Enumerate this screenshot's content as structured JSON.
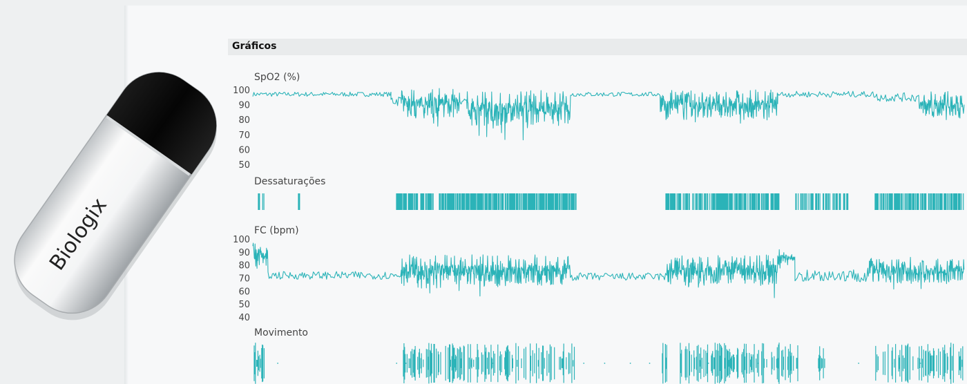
{
  "header": {
    "title": "Gráficos"
  },
  "device": {
    "brand": "Biologix"
  },
  "chart_data": [
    {
      "type": "line",
      "title": "SpO2 (%)",
      "yticks": [
        100,
        90,
        80,
        70,
        60,
        50
      ],
      "ylim": [
        50,
        100
      ],
      "color": "#2bb3b8",
      "segments": [
        {
          "x0": 0,
          "x1": 200,
          "base": 97,
          "amp": 1.5
        },
        {
          "x0": 200,
          "x1": 215,
          "base": 93,
          "amp": 4
        },
        {
          "x0": 215,
          "x1": 300,
          "base": 91,
          "amp": 10
        },
        {
          "x0": 300,
          "x1": 310,
          "base": 93,
          "amp": 3
        },
        {
          "x0": 310,
          "x1": 460,
          "base": 88,
          "amp": 12
        },
        {
          "x0": 460,
          "x1": 590,
          "base": 97,
          "amp": 1.5
        },
        {
          "x0": 590,
          "x1": 760,
          "base": 90,
          "amp": 10
        },
        {
          "x0": 760,
          "x1": 900,
          "base": 97,
          "amp": 2
        },
        {
          "x0": 900,
          "x1": 965,
          "base": 95,
          "amp": 3
        },
        {
          "x0": 965,
          "x1": 1030,
          "base": 90,
          "amp": 9
        }
      ]
    },
    {
      "type": "events",
      "title": "Dessaturações",
      "color": "#2bb3b8",
      "clusters": [
        {
          "x0": 8,
          "x1": 20,
          "density": 0.3
        },
        {
          "x0": 66,
          "x1": 68,
          "density": 1
        },
        {
          "x0": 208,
          "x1": 262,
          "density": 0.7
        },
        {
          "x0": 270,
          "x1": 468,
          "density": 0.8
        },
        {
          "x0": 598,
          "x1": 762,
          "density": 0.75
        },
        {
          "x0": 786,
          "x1": 862,
          "density": 0.55
        },
        {
          "x0": 900,
          "x1": 1030,
          "density": 0.7
        }
      ]
    },
    {
      "type": "line",
      "title": "FC (bpm)",
      "yticks": [
        100,
        90,
        80,
        70,
        60,
        50,
        40
      ],
      "ylim": [
        40,
        100
      ],
      "color": "#2bb3b8",
      "segments": [
        {
          "x0": 0,
          "x1": 22,
          "base": 88,
          "amp": 10
        },
        {
          "x0": 22,
          "x1": 215,
          "base": 72,
          "amp": 3
        },
        {
          "x0": 215,
          "x1": 460,
          "base": 76,
          "amp": 12
        },
        {
          "x0": 460,
          "x1": 600,
          "base": 71,
          "amp": 3
        },
        {
          "x0": 600,
          "x1": 760,
          "base": 76,
          "amp": 12
        },
        {
          "x0": 760,
          "x1": 785,
          "base": 86,
          "amp": 6
        },
        {
          "x0": 785,
          "x1": 890,
          "base": 72,
          "amp": 5
        },
        {
          "x0": 890,
          "x1": 1030,
          "base": 76,
          "amp": 10
        }
      ]
    },
    {
      "type": "events",
      "title": "Movimento",
      "color": "#2bb3b8",
      "clusters": [
        {
          "x0": 2,
          "x1": 18,
          "density": 0.8
        },
        {
          "x0": 218,
          "x1": 466,
          "density": 0.5
        },
        {
          "x0": 592,
          "x1": 600,
          "density": 0.4
        },
        {
          "x0": 618,
          "x1": 790,
          "density": 0.55
        },
        {
          "x0": 818,
          "x1": 830,
          "density": 0.4
        },
        {
          "x0": 900,
          "x1": 1030,
          "density": 0.35
        }
      ]
    }
  ]
}
